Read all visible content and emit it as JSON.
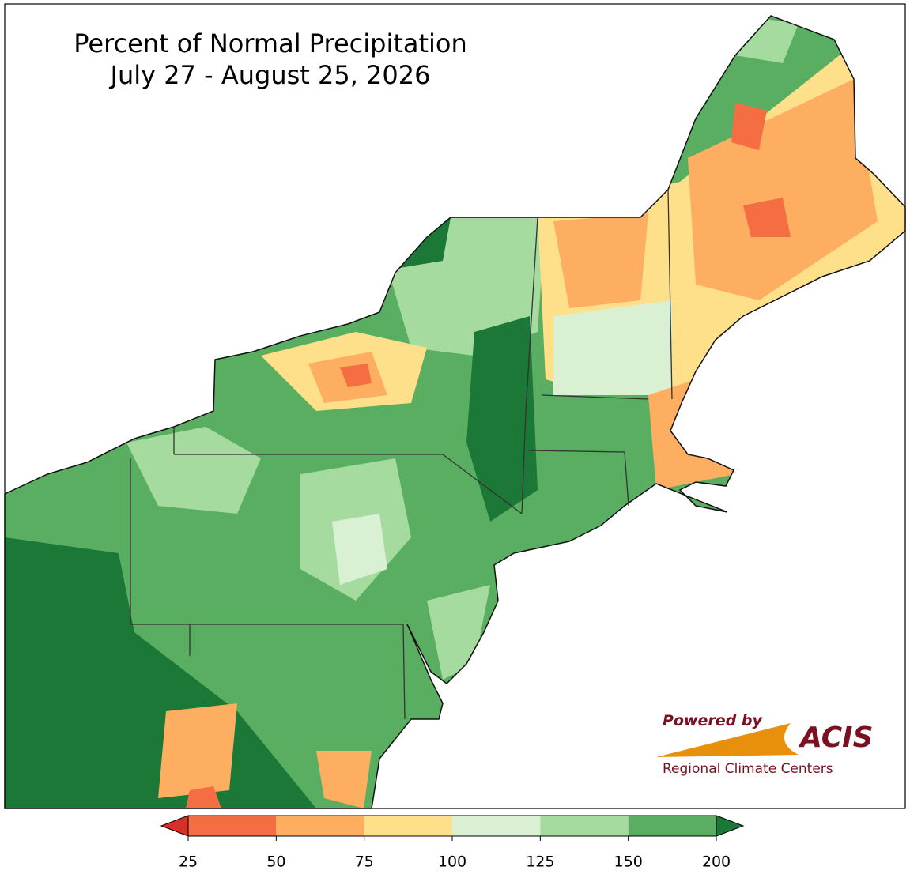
{
  "title": [
    "Percent of Normal Precipitation",
    "July 27 - August 25, 2026"
  ],
  "colorbar": {
    "ticks": [
      25,
      50,
      75,
      100,
      125,
      150,
      200
    ],
    "colors": [
      "#f46d43",
      "#fdae61",
      "#fee08b",
      "#d9f0d3",
      "#a6dba0",
      "#5aae61"
    ],
    "under_color": "#d73027",
    "over_color": "#1b7837"
  },
  "logo": {
    "powered_by": "Powered by",
    "name": "ACIS",
    "subtitle": "Regional Climate Centers"
  }
}
